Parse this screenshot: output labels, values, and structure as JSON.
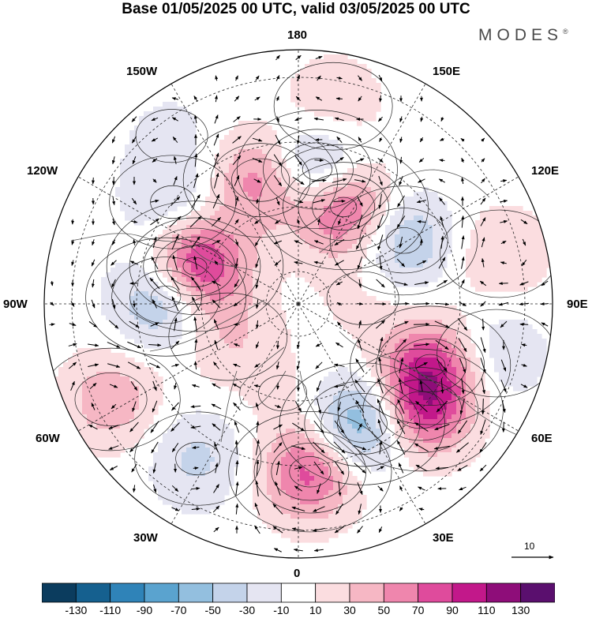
{
  "title": "Base 01/05/2025 00 UTC, valid 03/05/2025 00 UTC",
  "brand": "MODES",
  "brand_mark": "®",
  "longitude_labels": {
    "lon_180": "180",
    "lon_150e": "150E",
    "lon_120e": "120E",
    "lon_90e": "90E",
    "lon_60e": "60E",
    "lon_30e": "30E",
    "lon_0": "0",
    "lon_30w": "30W",
    "lon_60w": "60W",
    "lon_90w": "90W",
    "lon_120w": "120W",
    "lon_150w": "150W"
  },
  "reference_vector": {
    "label": "10"
  },
  "colorbar": {
    "colors": [
      "#0b3c5e",
      "#15608f",
      "#2f83b8",
      "#5aa3cf",
      "#93bfdf",
      "#c4d3ea",
      "#e5e5f2",
      "#ffffff",
      "#fbdde0",
      "#f6b7c4",
      "#ef86ad",
      "#df4b9c",
      "#c2188a",
      "#8e0d79",
      "#5a0f6e"
    ],
    "labels": [
      "-130",
      "-110",
      "-90",
      "-70",
      "-50",
      "-30",
      "-10",
      "10",
      "30",
      "50",
      "70",
      "90",
      "110",
      "130"
    ]
  },
  "anomaly_centers": [
    {
      "lon": 172,
      "lat": 48,
      "value": -75
    },
    {
      "lon": -163,
      "lat": 50,
      "value": 65
    },
    {
      "lon": 155,
      "lat": 57,
      "value": 95
    },
    {
      "lon": 121,
      "lat": 52,
      "value": -55
    },
    {
      "lon": 104,
      "lat": 26,
      "value": 30
    },
    {
      "lon": 76,
      "lat": 27,
      "value": -30
    },
    {
      "lon": 65,
      "lat": 45,
      "value": 75
    },
    {
      "lon": 49,
      "lat": 40,
      "value": 85
    },
    {
      "lon": 28,
      "lat": 48,
      "value": -85
    },
    {
      "lon": 4,
      "lat": 38,
      "value": 80
    },
    {
      "lon": -33,
      "lat": 33,
      "value": -35
    },
    {
      "lon": -63,
      "lat": 25,
      "value": 45
    },
    {
      "lon": -65,
      "lat": 66,
      "value": 30
    },
    {
      "lon": -93,
      "lat": 49,
      "value": -75
    },
    {
      "lon": -110,
      "lat": 56,
      "value": 115
    },
    {
      "lon": -129,
      "lat": 40,
      "value": -35
    },
    {
      "lon": -143,
      "lat": 25,
      "value": -15
    },
    {
      "lon": 170,
      "lat": 28,
      "value": 30
    },
    {
      "lon": 95,
      "lat": 70,
      "value": 15
    },
    {
      "lon": -10,
      "lat": 62,
      "value": 12
    }
  ]
}
